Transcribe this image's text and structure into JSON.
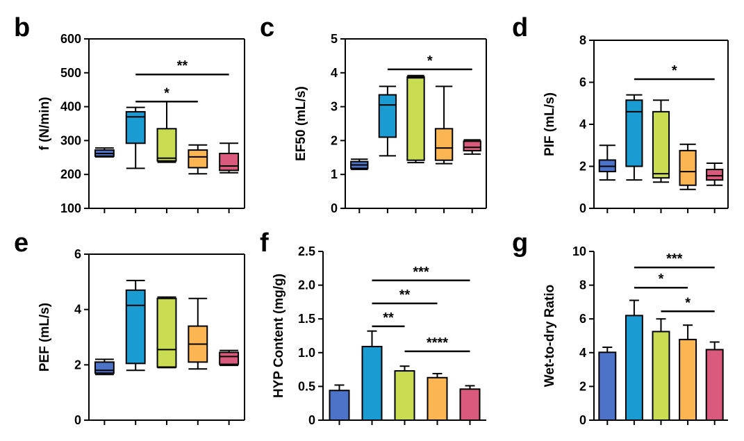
{
  "figure": {
    "colors": [
      "#4d73c8",
      "#1a9bd1",
      "#c9dc52",
      "#fbb552",
      "#d95a7c"
    ]
  },
  "chart_data": [
    {
      "panel": "b",
      "type": "box",
      "ylabel": "f (N/min)",
      "ylim": [
        100,
        600
      ],
      "yticks": [
        100,
        200,
        300,
        400,
        500,
        600
      ],
      "boxes": [
        {
          "min": 252,
          "q1": 254,
          "median": 262,
          "q3": 272,
          "max": 278
        },
        {
          "min": 218,
          "q1": 292,
          "median": 370,
          "q3": 385,
          "max": 398
        },
        {
          "min": 236,
          "q1": 240,
          "median": 248,
          "q3": 335,
          "max": 415
        },
        {
          "min": 202,
          "q1": 220,
          "median": 252,
          "q3": 272,
          "max": 287
        },
        {
          "min": 205,
          "q1": 212,
          "median": 225,
          "q3": 262,
          "max": 292
        }
      ],
      "significance": [
        {
          "from": 1,
          "to": 4,
          "y": 495,
          "label": "**"
        },
        {
          "from": 1,
          "to": 3,
          "y": 415,
          "label": "*"
        }
      ]
    },
    {
      "panel": "c",
      "type": "box",
      "ylabel": "EF50 (mL/s)",
      "ylim": [
        0,
        5
      ],
      "yticks": [
        0,
        1,
        2,
        3,
        4,
        5
      ],
      "boxes": [
        {
          "min": 1.15,
          "q1": 1.18,
          "median": 1.28,
          "q3": 1.38,
          "max": 1.45
        },
        {
          "min": 1.55,
          "q1": 2.1,
          "median": 3.05,
          "q3": 3.35,
          "max": 3.6
        },
        {
          "min": 1.35,
          "q1": 1.42,
          "median": 3.85,
          "q3": 3.88,
          "max": 3.92
        },
        {
          "min": 1.32,
          "q1": 1.42,
          "median": 1.78,
          "q3": 2.35,
          "max": 3.6
        },
        {
          "min": 1.6,
          "q1": 1.7,
          "median": 1.8,
          "q3": 1.98,
          "max": 2.02
        }
      ],
      "significance": [
        {
          "from": 1,
          "to": 4,
          "y": 4.1,
          "label": "*"
        }
      ]
    },
    {
      "panel": "d",
      "type": "box",
      "ylabel": "PIF (mL/s)",
      "ylim": [
        0,
        8
      ],
      "yticks": [
        0,
        2,
        4,
        6,
        8
      ],
      "boxes": [
        {
          "min": 1.35,
          "q1": 1.75,
          "median": 2.0,
          "q3": 2.3,
          "max": 3.0
        },
        {
          "min": 1.35,
          "q1": 2.0,
          "median": 4.6,
          "q3": 5.15,
          "max": 5.4
        },
        {
          "min": 1.25,
          "q1": 1.45,
          "median": 1.65,
          "q3": 4.6,
          "max": 5.15
        },
        {
          "min": 0.9,
          "q1": 1.1,
          "median": 1.75,
          "q3": 2.75,
          "max": 3.05
        },
        {
          "min": 1.1,
          "q1": 1.35,
          "median": 1.55,
          "q3": 1.85,
          "max": 2.15
        }
      ],
      "significance": [
        {
          "from": 1,
          "to": 4,
          "y": 6.15,
          "label": "*"
        }
      ]
    },
    {
      "panel": "e",
      "type": "box",
      "ylabel": "PEF (mL/s)",
      "ylim": [
        0,
        6
      ],
      "yticks": [
        0,
        2,
        4,
        6
      ],
      "boxes": [
        {
          "min": 1.65,
          "q1": 1.7,
          "median": 1.8,
          "q3": 2.1,
          "max": 2.2
        },
        {
          "min": 1.8,
          "q1": 2.05,
          "median": 4.15,
          "q3": 4.7,
          "max": 5.05
        },
        {
          "min": 1.9,
          "q1": 1.92,
          "median": 2.55,
          "q3": 4.4,
          "max": 4.45
        },
        {
          "min": 1.85,
          "q1": 2.1,
          "median": 2.75,
          "q3": 3.4,
          "max": 4.4
        },
        {
          "min": 1.98,
          "q1": 2.02,
          "median": 2.3,
          "q3": 2.45,
          "max": 2.52
        }
      ],
      "significance": []
    },
    {
      "panel": "f",
      "type": "bar",
      "ylabel": "HYP Content (mg/g)",
      "ylim": [
        0,
        2.5
      ],
      "yticks": [
        "0",
        "0.5",
        "1.0",
        "1.5",
        "2.0",
        "2.5"
      ],
      "values": [
        0.44,
        1.09,
        0.73,
        0.63,
        0.46
      ],
      "errors": [
        0.08,
        0.23,
        0.07,
        0.06,
        0.05
      ],
      "significance": [
        {
          "from": 1,
          "to": 4,
          "y": 2.07,
          "label": "***"
        },
        {
          "from": 1,
          "to": 3,
          "y": 1.73,
          "label": "**"
        },
        {
          "from": 1,
          "to": 2,
          "y": 1.39,
          "label": "**"
        },
        {
          "from": 2,
          "to": 4,
          "y": 1.02,
          "label": "****"
        }
      ]
    },
    {
      "panel": "g",
      "type": "bar",
      "ylabel": "Wet-to-dry Ratio",
      "ylim": [
        0,
        10
      ],
      "yticks": [
        0,
        2,
        4,
        6,
        8,
        10
      ],
      "values": [
        4.02,
        6.2,
        5.25,
        4.78,
        4.18
      ],
      "errors": [
        0.3,
        0.9,
        0.75,
        0.85,
        0.45
      ],
      "significance": [
        {
          "from": 1,
          "to": 4,
          "y": 9.05,
          "label": "***"
        },
        {
          "from": 1,
          "to": 3,
          "y": 7.85,
          "label": "*"
        },
        {
          "from": 2,
          "to": 4,
          "y": 6.45,
          "label": "*"
        }
      ]
    }
  ]
}
